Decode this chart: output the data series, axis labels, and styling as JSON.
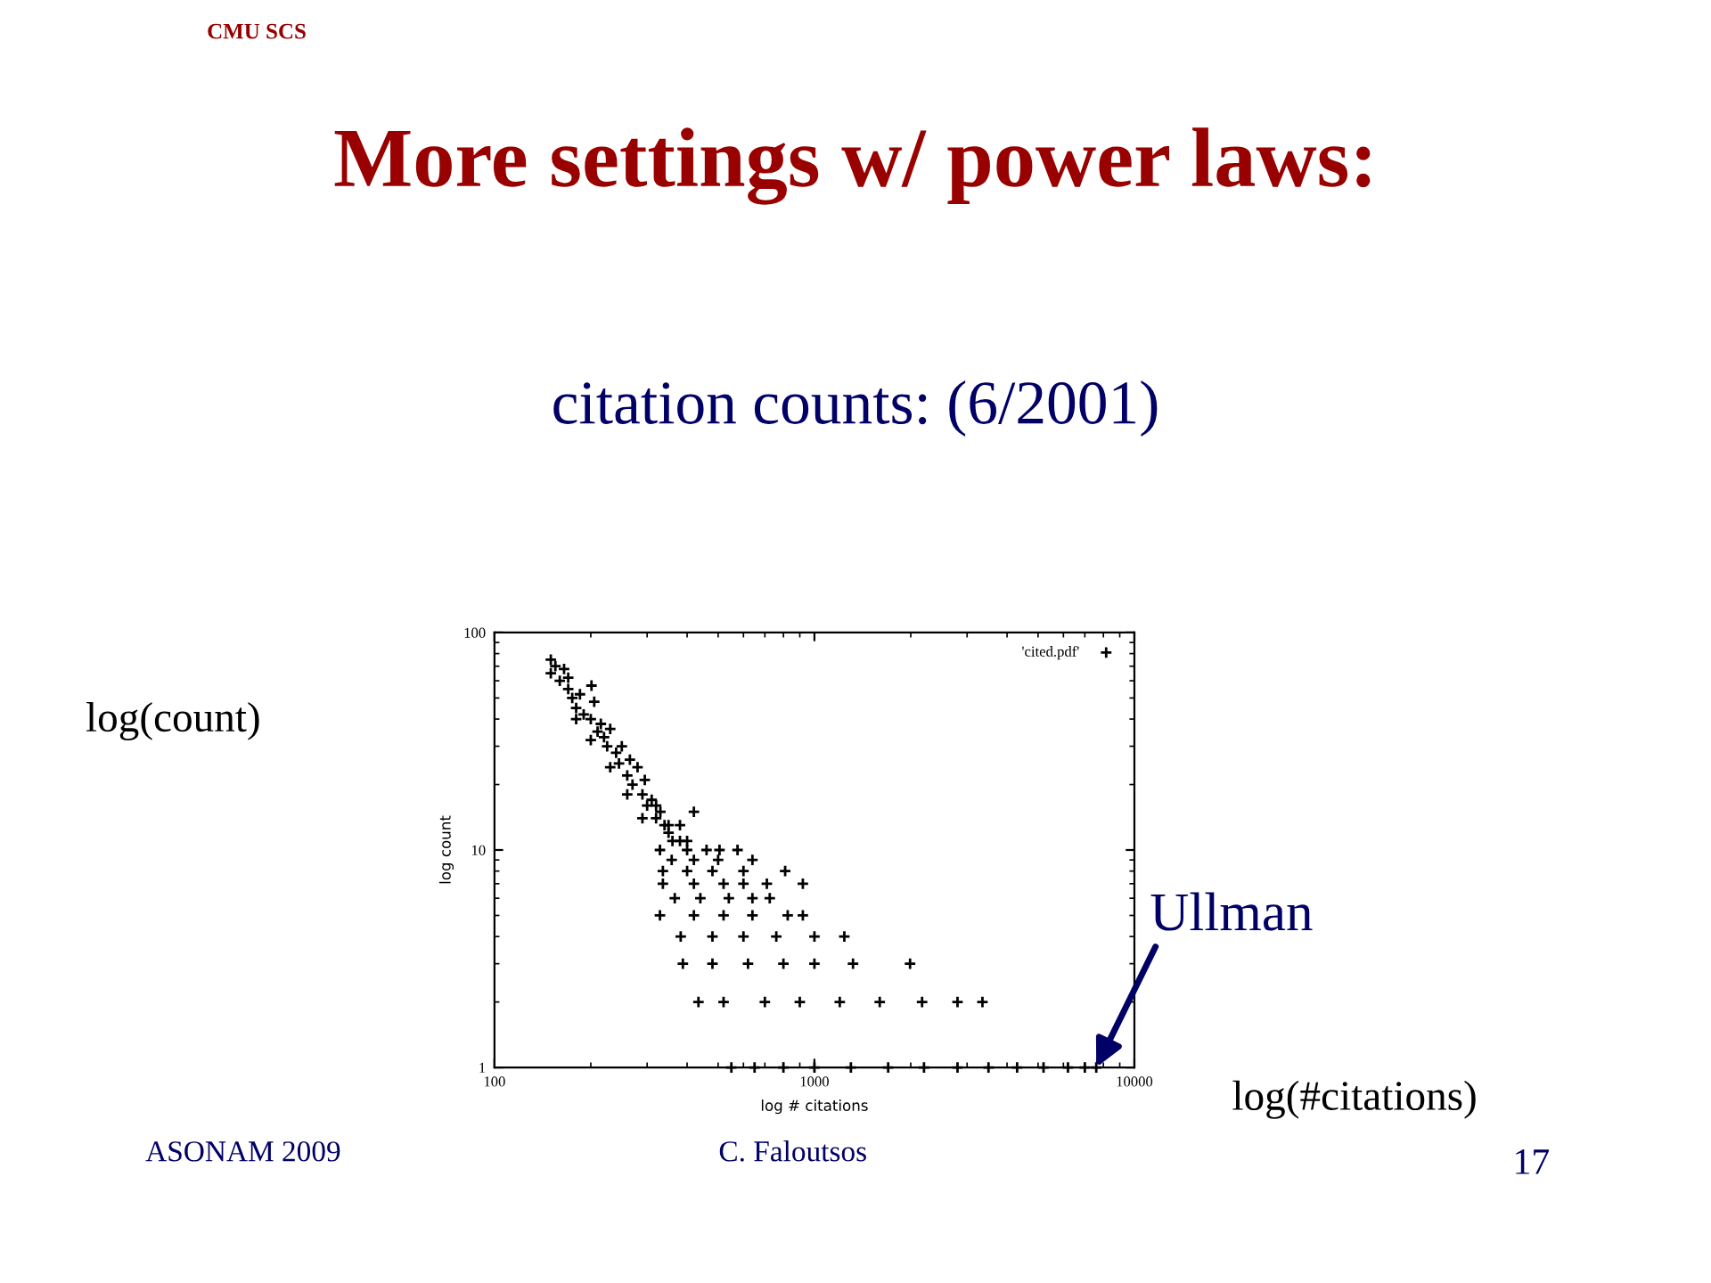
{
  "chart_data": {
    "type": "scatter",
    "title": "More settings w/ power laws:",
    "subtitle": "citation counts: (6/2001)",
    "xlabel": "log # citations",
    "ylabel": "log count",
    "annotations": [
      "CMU SCS",
      "log(count)",
      "log(#citations)",
      {
        "text": "Ullman",
        "x": 7600,
        "y": 1
      },
      "ASONAM 2009",
      "C. Faloutsos",
      "17"
    ],
    "log": "xy",
    "xlim": [
      100,
      10000
    ],
    "ylim": [
      1,
      100
    ],
    "xticks": [
      100,
      1000,
      10000
    ],
    "yticks": [
      1,
      10,
      100
    ],
    "marker": "cross",
    "legend": "top right",
    "grid": false,
    "series": [
      {
        "name": "'cited.pdf'",
        "color": "#000000",
        "x": [
          150,
          150,
          155,
          160,
          165,
          170,
          175,
          180,
          185,
          190,
          200,
          201,
          205,
          210,
          215,
          220,
          225,
          230,
          240,
          245,
          250,
          260,
          265,
          270,
          280,
          290,
          295,
          300,
          310,
          320,
          330,
          340,
          350,
          360,
          380,
          400,
          420,
          180,
          170,
          200,
          230,
          260,
          290,
          320,
          350,
          380,
          329,
          400,
          460,
          505,
          575,
          358,
          420,
          500,
          640,
          336,
          400,
          480,
          600,
          810,
          336,
          420,
          520,
          600,
          710,
          920,
          366,
          440,
          540,
          640,
          725,
          329,
          420,
          520,
          640,
          825,
          920,
          382,
          480,
          600,
          760,
          1000,
          1240,
          388,
          480,
          620,
          800,
          1000,
          1320,
          1990,
          434,
          520,
          700,
          900,
          1200,
          1600,
          2170,
          2800,
          3350,
          550,
          650,
          800,
          1000,
          1300,
          1700,
          2200,
          2800,
          3500,
          4300,
          5200,
          6200,
          7000,
          7600
        ],
        "values": [
          75,
          65,
          70,
          60,
          68,
          55,
          50,
          45,
          52,
          42,
          40,
          57,
          48,
          35,
          38,
          33,
          30,
          36,
          28,
          25,
          30,
          22,
          26,
          20,
          24,
          18,
          21,
          16,
          17,
          14,
          15,
          13,
          12,
          11,
          13,
          11,
          15,
          40,
          62,
          32,
          24,
          18,
          14,
          16,
          13,
          11,
          10,
          10,
          10,
          10,
          10,
          9,
          9,
          9,
          9,
          8,
          8,
          8,
          8,
          8,
          7,
          7,
          7,
          7,
          7,
          7,
          6,
          6,
          6,
          6,
          6,
          5,
          5,
          5,
          5,
          5,
          5,
          4,
          4,
          4,
          4,
          4,
          4,
          3,
          3,
          3,
          3,
          3,
          3,
          3,
          2,
          2,
          2,
          2,
          2,
          2,
          2,
          2,
          2,
          1,
          1,
          1,
          1,
          1,
          1,
          1,
          1,
          1,
          1,
          1,
          1,
          1,
          1
        ]
      }
    ]
  }
}
